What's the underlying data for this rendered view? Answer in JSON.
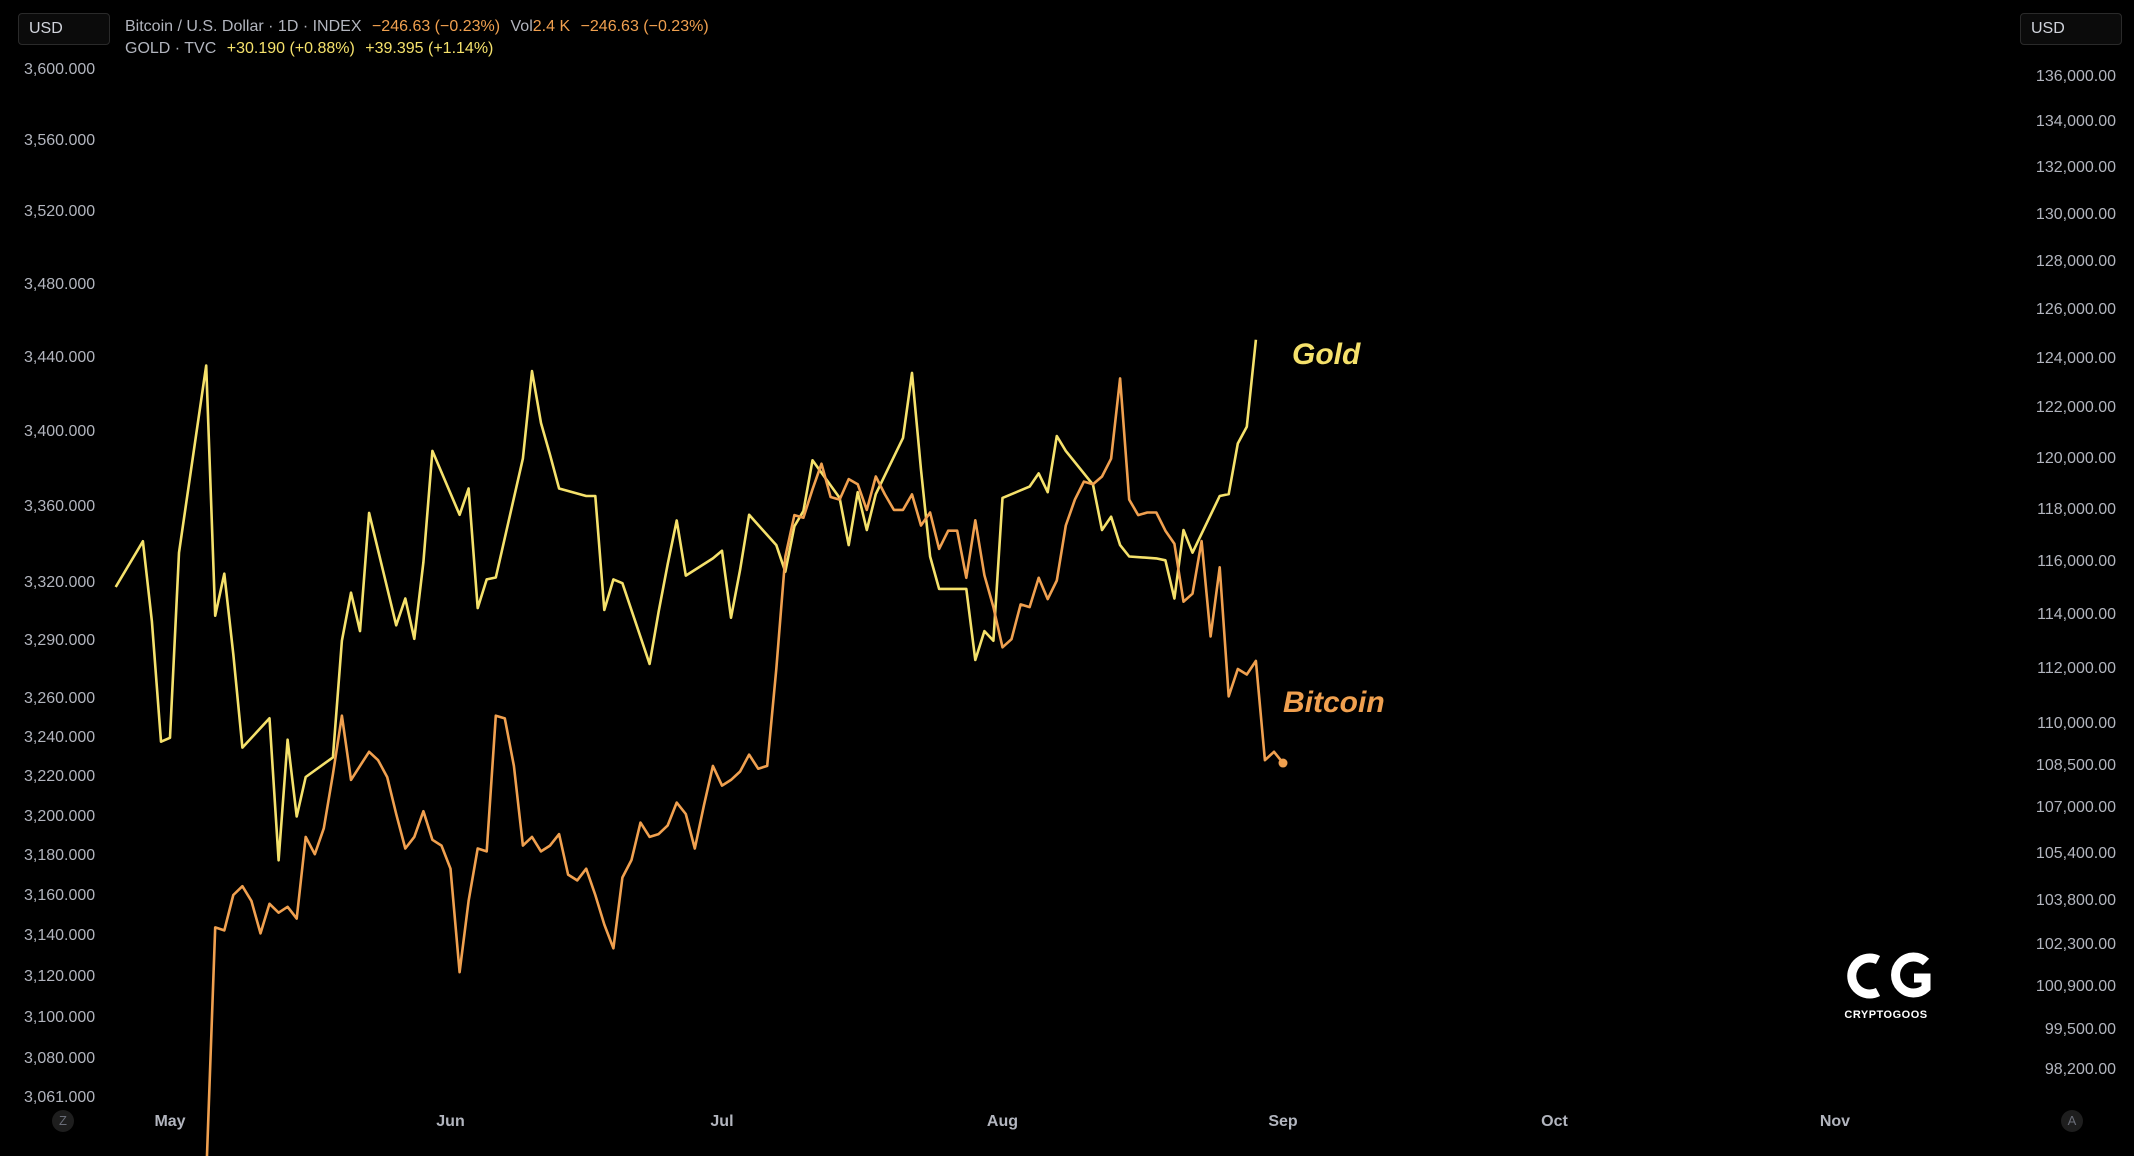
{
  "header": {
    "left_currency": "USD",
    "right_currency": "USD",
    "btc_legend": {
      "symbol": "Bitcoin / U.S. Dollar · 1D · INDEX",
      "change": "−246.63 (−0.23%)",
      "vol_label": "Vol",
      "vol_value": "2.4 K",
      "vol_change": "−246.63 (−0.23%)"
    },
    "gold_legend": {
      "symbol": "GOLD · TVC",
      "change1": "+30.190 (+0.88%)",
      "change2": "+39.395 (+1.14%)"
    }
  },
  "footer": {
    "left_badge": "Z",
    "right_badge": "A"
  },
  "watermark": {
    "brand": "CRYPTOGOOS"
  },
  "colors": {
    "gold": "#f5e16b",
    "bitcoin": "#f0a04f",
    "background": "#000000",
    "text": "#b2b5be"
  },
  "chart_data": {
    "type": "line",
    "x_ticks": [
      "May",
      "Jun",
      "Jul",
      "Aug",
      "Sep",
      "Oct",
      "Nov"
    ],
    "left_axis_ticks": [
      "3,600.000",
      "3,560.000",
      "3,520.000",
      "3,480.000",
      "3,440.000",
      "3,400.000",
      "3,360.000",
      "3,320.000",
      "3,290.000",
      "3,260.000",
      "3,240.000",
      "3,220.000",
      "3,200.000",
      "3,180.000",
      "3,160.000",
      "3,140.000",
      "3,120.000",
      "3,100.000",
      "3,080.000",
      "3,061.000"
    ],
    "right_axis_ticks": [
      "136,000.00",
      "134,000.00",
      "132,000.00",
      "130,000.00",
      "128,000.00",
      "126,000.00",
      "124,000.00",
      "122,000.00",
      "120,000.00",
      "118,000.00",
      "116,000.00",
      "114,000.00",
      "112,000.00",
      "110,000.00",
      "108,500.00",
      "107,000.00",
      "105,400.00",
      "103,800.00",
      "102,300.00",
      "100,900.00",
      "99,500.00",
      "98,200.00"
    ],
    "log_scale": true,
    "series": [
      {
        "name": "Gold",
        "axis": "left",
        "x": [
          "2025-04-25",
          "2025-04-28",
          "2025-04-29",
          "2025-04-30",
          "2025-05-01",
          "2025-05-02",
          "2025-05-05",
          "2025-05-06",
          "2025-05-07",
          "2025-05-08",
          "2025-05-09",
          "2025-05-12",
          "2025-05-13",
          "2025-05-14",
          "2025-05-15",
          "2025-05-16",
          "2025-05-19",
          "2025-05-20",
          "2025-05-21",
          "2025-05-22",
          "2025-05-23",
          "2025-05-26",
          "2025-05-27",
          "2025-05-28",
          "2025-05-29",
          "2025-05-30",
          "2025-06-02",
          "2025-06-03",
          "2025-06-04",
          "2025-06-05",
          "2025-06-06",
          "2025-06-09",
          "2025-06-10",
          "2025-06-11",
          "2025-06-12",
          "2025-06-13",
          "2025-06-16",
          "2025-06-17",
          "2025-06-18",
          "2025-06-19",
          "2025-06-20",
          "2025-06-23",
          "2025-06-24",
          "2025-06-25",
          "2025-06-26",
          "2025-06-27",
          "2025-06-30",
          "2025-07-01",
          "2025-07-02",
          "2025-07-03",
          "2025-07-04",
          "2025-07-07",
          "2025-07-08",
          "2025-07-09",
          "2025-07-10",
          "2025-07-11",
          "2025-07-14",
          "2025-07-15",
          "2025-07-16",
          "2025-07-17",
          "2025-07-18",
          "2025-07-21",
          "2025-07-22",
          "2025-07-23",
          "2025-07-24",
          "2025-07-25",
          "2025-07-28",
          "2025-07-29",
          "2025-07-30",
          "2025-07-31",
          "2025-08-01",
          "2025-08-04",
          "2025-08-05",
          "2025-08-06",
          "2025-08-07",
          "2025-08-08",
          "2025-08-11",
          "2025-08-12",
          "2025-08-13",
          "2025-08-14",
          "2025-08-15",
          "2025-08-18",
          "2025-08-19",
          "2025-08-20",
          "2025-08-21",
          "2025-08-22",
          "2025-08-25",
          "2025-08-26",
          "2025-08-27",
          "2025-08-28",
          "2025-08-29"
        ],
        "y": [
          3318,
          3342,
          3300,
          3238,
          3240,
          3336,
          3436,
          3303,
          3325,
          3283,
          3235,
          3250,
          3178,
          3239,
          3200,
          3220,
          3230,
          3290,
          3315,
          3295,
          3357,
          3298,
          3312,
          3291,
          3331,
          3390,
          3356,
          3370,
          3307,
          3322,
          3323,
          3386,
          3433,
          3405,
          3388,
          3370,
          3366,
          3366,
          3306,
          3322,
          3320,
          3278,
          3305,
          3330,
          3353,
          3324,
          3333,
          3337,
          3302,
          3327,
          3356,
          3340,
          3326,
          3350,
          3358,
          3385,
          3365,
          3340,
          3368,
          3348,
          3367,
          3397,
          3432,
          3380,
          3334,
          3317,
          3317,
          3280,
          3295,
          3290,
          3365,
          3371,
          3378,
          3368,
          3398,
          3390,
          3372,
          3348,
          3355,
          3340,
          3334,
          3333,
          3332,
          3312,
          3348,
          3336,
          3366,
          3367,
          3394,
          3403,
          3450
        ]
      },
      {
        "name": "Bitcoin",
        "axis": "right",
        "x": [
          "2025-05-05",
          "2025-05-06",
          "2025-05-07",
          "2025-05-08",
          "2025-05-09",
          "2025-05-10",
          "2025-05-11",
          "2025-05-12",
          "2025-05-13",
          "2025-05-14",
          "2025-05-15",
          "2025-05-16",
          "2025-05-17",
          "2025-05-18",
          "2025-05-19",
          "2025-05-20",
          "2025-05-21",
          "2025-05-22",
          "2025-05-23",
          "2025-05-24",
          "2025-05-25",
          "2025-05-26",
          "2025-05-27",
          "2025-05-28",
          "2025-05-29",
          "2025-05-30",
          "2025-05-31",
          "2025-06-01",
          "2025-06-02",
          "2025-06-03",
          "2025-06-04",
          "2025-06-05",
          "2025-06-06",
          "2025-06-07",
          "2025-06-08",
          "2025-06-09",
          "2025-06-10",
          "2025-06-11",
          "2025-06-12",
          "2025-06-13",
          "2025-06-14",
          "2025-06-15",
          "2025-06-16",
          "2025-06-17",
          "2025-06-18",
          "2025-06-19",
          "2025-06-20",
          "2025-06-21",
          "2025-06-22",
          "2025-06-23",
          "2025-06-24",
          "2025-06-25",
          "2025-06-26",
          "2025-06-27",
          "2025-06-28",
          "2025-06-29",
          "2025-06-30",
          "2025-07-01",
          "2025-07-02",
          "2025-07-03",
          "2025-07-04",
          "2025-07-05",
          "2025-07-06",
          "2025-07-07",
          "2025-07-08",
          "2025-07-09",
          "2025-07-10",
          "2025-07-11",
          "2025-07-12",
          "2025-07-13",
          "2025-07-14",
          "2025-07-15",
          "2025-07-16",
          "2025-07-17",
          "2025-07-18",
          "2025-07-19",
          "2025-07-20",
          "2025-07-21",
          "2025-07-22",
          "2025-07-23",
          "2025-07-24",
          "2025-07-25",
          "2025-07-26",
          "2025-07-27",
          "2025-07-28",
          "2025-07-29",
          "2025-07-30",
          "2025-07-31",
          "2025-08-01",
          "2025-08-02",
          "2025-08-03",
          "2025-08-04",
          "2025-08-05",
          "2025-08-06",
          "2025-08-07",
          "2025-08-08",
          "2025-08-09",
          "2025-08-10",
          "2025-08-11",
          "2025-08-12",
          "2025-08-13",
          "2025-08-14",
          "2025-08-15",
          "2025-08-16",
          "2025-08-17",
          "2025-08-18",
          "2025-08-19",
          "2025-08-20",
          "2025-08-21",
          "2025-08-22",
          "2025-08-23",
          "2025-08-24",
          "2025-08-25",
          "2025-08-26",
          "2025-08-27",
          "2025-08-28",
          "2025-08-29",
          "2025-08-30",
          "2025-08-31",
          "2025-09-01"
        ],
        "y": [
          94800,
          102900,
          102800,
          104000,
          104300,
          103800,
          102700,
          103700,
          103400,
          103600,
          103200,
          106000,
          105400,
          106300,
          108200,
          110300,
          108000,
          108500,
          109000,
          108700,
          108100,
          106800,
          105600,
          106000,
          106900,
          105900,
          105700,
          104900,
          101400,
          103800,
          105600,
          105500,
          110300,
          110200,
          108500,
          105700,
          106000,
          105500,
          105700,
          106100,
          104700,
          104500,
          104900,
          104000,
          103000,
          102200,
          104600,
          105200,
          106500,
          106000,
          106100,
          106400,
          107200,
          106800,
          105600,
          107100,
          108500,
          107800,
          108000,
          108300,
          108900,
          108400,
          108500,
          112000,
          116200,
          117800,
          117700,
          118800,
          119800,
          118500,
          118400,
          119200,
          119000,
          118000,
          119300,
          118600,
          118000,
          118000,
          118600,
          117400,
          117900,
          116500,
          117200,
          117200,
          115400,
          117600,
          115500,
          114300,
          112800,
          113100,
          114400,
          114300,
          115400,
          114600,
          115300,
          117400,
          118400,
          119100,
          119000,
          119300,
          120000,
          123200,
          118400,
          117800,
          117900,
          117900,
          117200,
          116700,
          114500,
          114800,
          116800,
          113200,
          115800,
          111000,
          112000,
          111800,
          112300,
          108700,
          109000,
          108600
        ]
      }
    ],
    "annotations": [
      "Gold",
      "Bitcoin"
    ]
  }
}
